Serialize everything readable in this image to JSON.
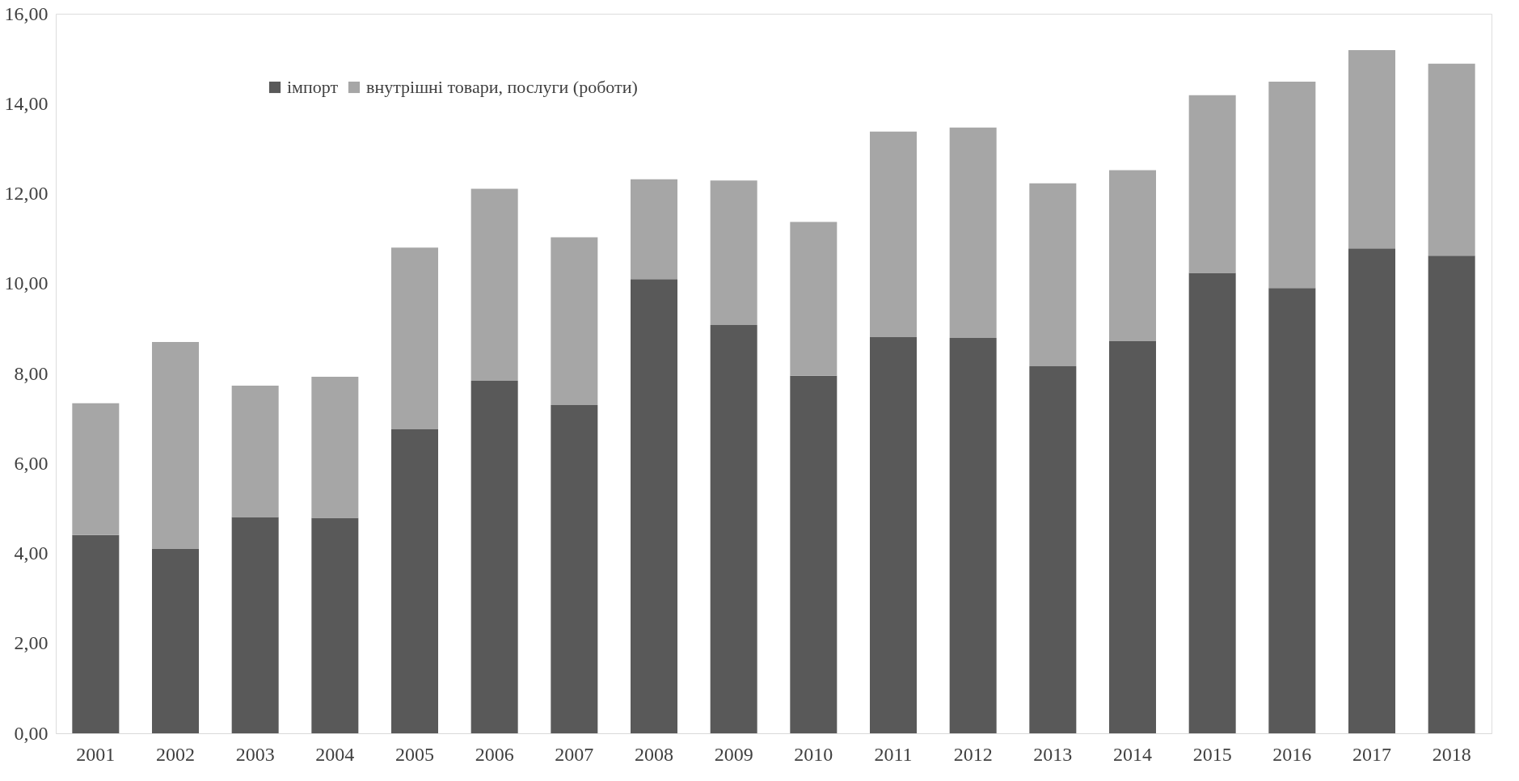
{
  "chart_data": {
    "type": "bar",
    "stacked": true,
    "legend": "top left",
    "grid": false,
    "categories": [
      "2001",
      "2002",
      "2003",
      "2004",
      "2005",
      "2006",
      "2007",
      "2008",
      "2009",
      "2010",
      "2011",
      "2012",
      "2013",
      "2014",
      "2015",
      "2016",
      "2017",
      "2018"
    ],
    "ylim": [
      0,
      16
    ],
    "yticks": [
      {
        "value": 0,
        "label": "0,00"
      },
      {
        "value": 2,
        "label": "2,00"
      },
      {
        "value": 4,
        "label": "4,00"
      },
      {
        "value": 6,
        "label": "6,00"
      },
      {
        "value": 8,
        "label": "8,00"
      },
      {
        "value": 10,
        "label": "10,00"
      },
      {
        "value": 12,
        "label": "12,00"
      },
      {
        "value": 14,
        "label": "14,00"
      },
      {
        "value": 16,
        "label": "16,00"
      }
    ],
    "series": [
      {
        "name": "імпорт",
        "color": "#595959",
        "values": [
          4.41,
          4.11,
          4.81,
          4.79,
          6.76,
          7.84,
          7.3,
          10.1,
          9.08,
          7.95,
          8.81,
          8.79,
          8.16,
          8.72,
          10.24,
          9.9,
          10.78,
          10.62
        ]
      },
      {
        "name": "внутрішні товари, послуги (роботи)",
        "color": "#a6a6a6",
        "values": [
          2.93,
          4.59,
          2.92,
          3.14,
          4.04,
          4.27,
          3.73,
          2.22,
          3.21,
          3.42,
          4.57,
          4.68,
          4.07,
          3.8,
          3.95,
          4.59,
          4.41,
          4.27
        ]
      }
    ]
  }
}
